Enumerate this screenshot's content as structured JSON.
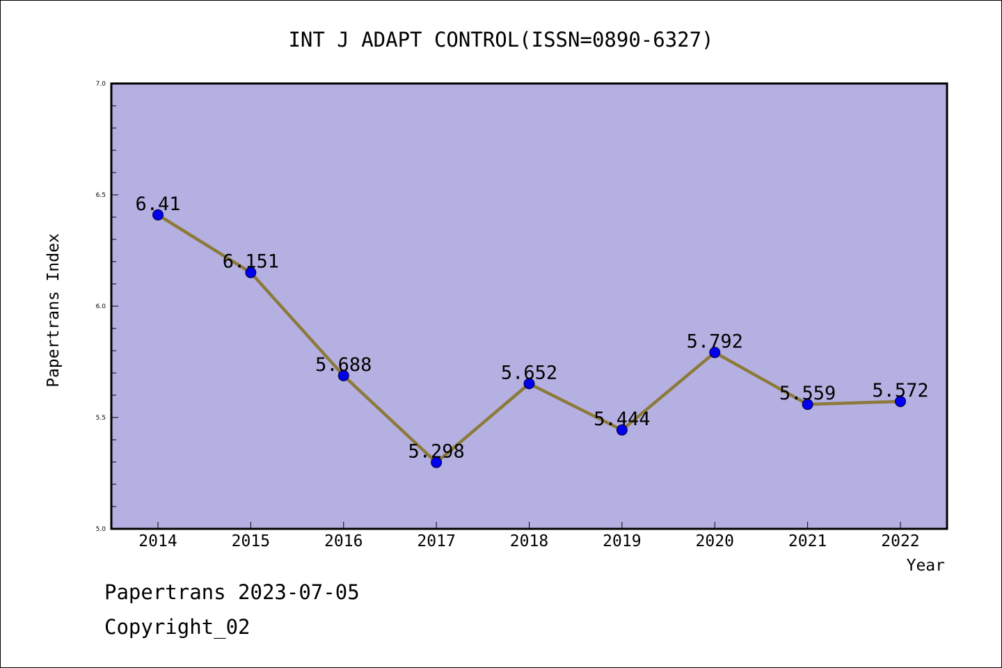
{
  "chart_data": {
    "type": "line",
    "title": "INT J ADAPT CONTROL(ISSN=0890-6327)",
    "xlabel": "Year",
    "ylabel": "Papertrans Index",
    "categories": [
      "2014",
      "2015",
      "2016",
      "2017",
      "2018",
      "2019",
      "2020",
      "2021",
      "2022"
    ],
    "values": [
      6.41,
      6.151,
      5.688,
      5.298,
      5.652,
      5.444,
      5.792,
      5.559,
      5.572
    ],
    "value_labels": [
      "6.41",
      "6.151",
      "5.688",
      "5.298",
      "5.652",
      "5.444",
      "5.792",
      "5.559",
      "5.572"
    ],
    "ylim": [
      5.0,
      7.0
    ],
    "yticks": [
      "5.0",
      "5.5",
      "6.0",
      "6.5",
      "7.0"
    ],
    "grid": false,
    "legend": "none",
    "colors": {
      "plot_background": "#b5b0e2",
      "line": "#8c7a3a",
      "marker": "#0000ee",
      "frame": "#000000"
    }
  },
  "footer": {
    "line1": "Papertrans 2023-07-05",
    "line2": "Copyright_02"
  }
}
